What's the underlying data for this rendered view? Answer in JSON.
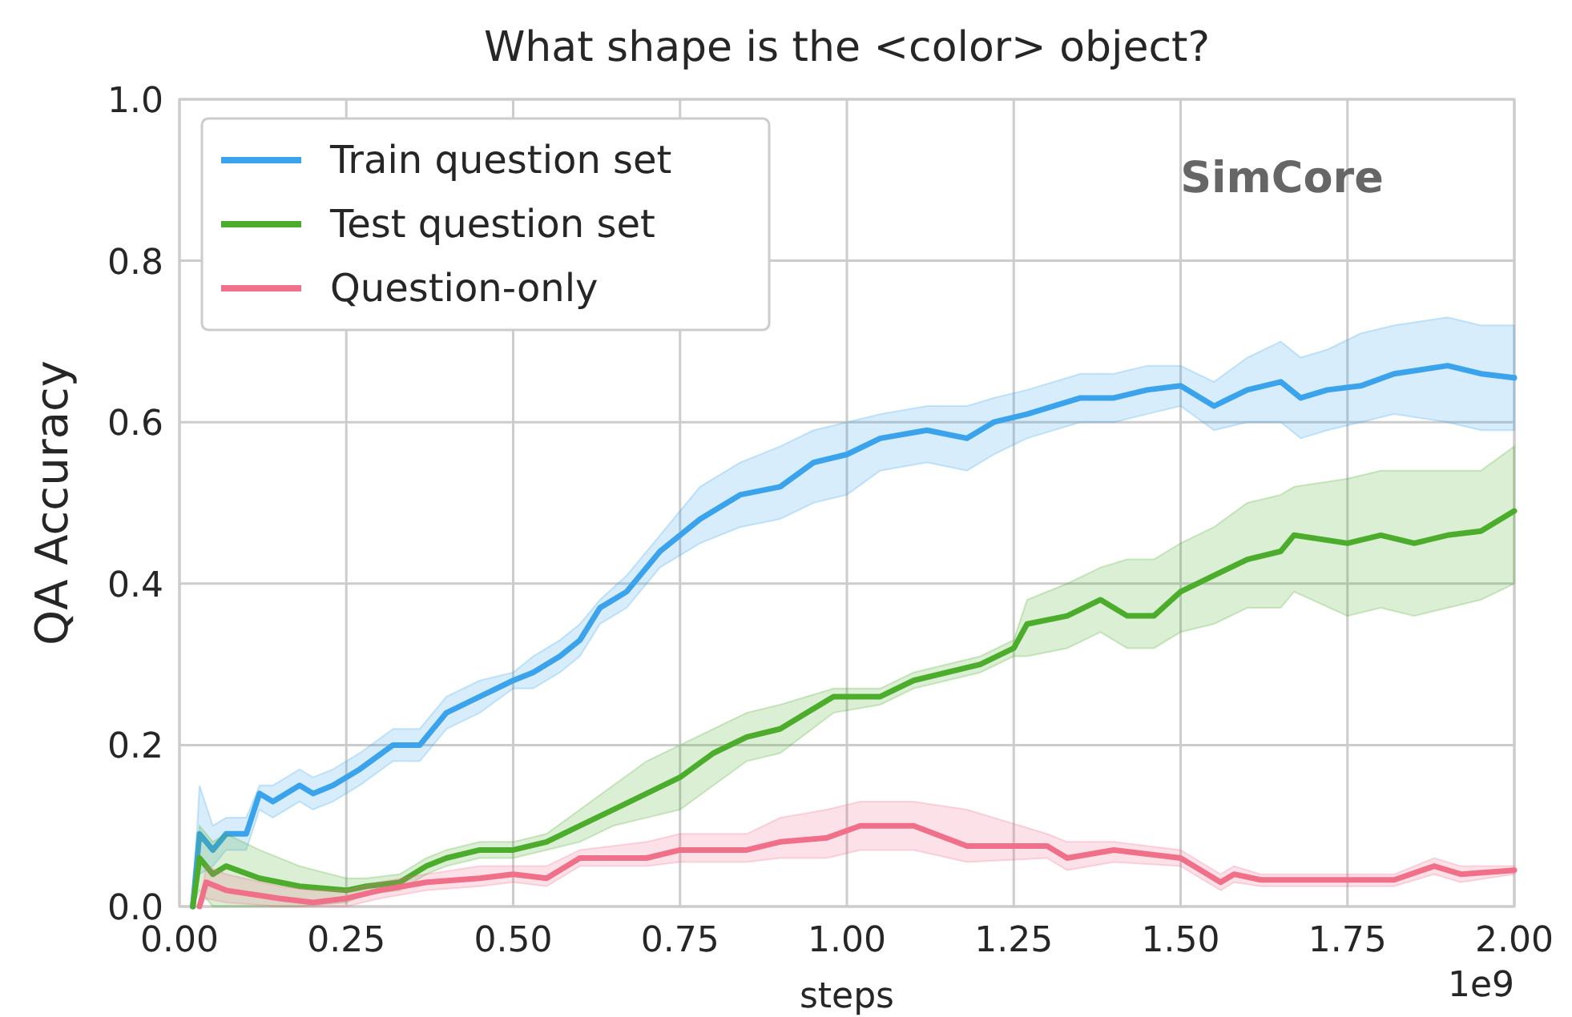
{
  "chart_data": {
    "type": "line",
    "title": "What shape is the <color> object?",
    "xlabel": "steps",
    "ylabel": "QA Accuracy",
    "annotations": [
      "SimCore",
      "1e9"
    ],
    "xlim": [
      0,
      2
    ],
    "xticks": [
      {
        "value": 0,
        "label": "0.00"
      },
      {
        "value": 0.25,
        "label": "0.25"
      },
      {
        "value": 0.5,
        "label": "0.50"
      },
      {
        "value": 0.75,
        "label": "0.75"
      },
      {
        "value": 1,
        "label": "1.00"
      },
      {
        "value": 1.25,
        "label": "1.25"
      },
      {
        "value": 1.5,
        "label": "1.50"
      },
      {
        "value": 1.75,
        "label": "1.75"
      },
      {
        "value": 2,
        "label": "2.00"
      }
    ],
    "ylim": [
      0,
      1
    ],
    "yticks": [
      {
        "value": 0,
        "label": "0.0"
      },
      {
        "value": 0.2,
        "label": "0.2"
      },
      {
        "value": 0.4,
        "label": "0.4"
      },
      {
        "value": 0.6,
        "label": "0.6"
      },
      {
        "value": 0.8,
        "label": "0.8"
      },
      {
        "value": 1,
        "label": "1.0"
      }
    ],
    "grid": true,
    "legend": "top left",
    "marker": "none",
    "line_style": "solid",
    "series": [
      {
        "name": "Train question set",
        "color": "#3ba3ec",
        "x": [
          0.02,
          0.03,
          0.05,
          0.07,
          0.1,
          0.12,
          0.14,
          0.18,
          0.2,
          0.23,
          0.27,
          0.32,
          0.36,
          0.4,
          0.45,
          0.5,
          0.53,
          0.57,
          0.6,
          0.63,
          0.67,
          0.72,
          0.78,
          0.84,
          0.9,
          0.95,
          1.0,
          1.05,
          1.12,
          1.18,
          1.22,
          1.27,
          1.35,
          1.4,
          1.45,
          1.5,
          1.55,
          1.6,
          1.65,
          1.68,
          1.72,
          1.77,
          1.82,
          1.9,
          1.95,
          2.0
        ],
        "values": [
          0,
          0.09,
          0.07,
          0.09,
          0.09,
          0.14,
          0.13,
          0.15,
          0.14,
          0.15,
          0.17,
          0.2,
          0.2,
          0.24,
          0.26,
          0.28,
          0.29,
          0.31,
          0.33,
          0.37,
          0.39,
          0.44,
          0.48,
          0.51,
          0.52,
          0.55,
          0.56,
          0.58,
          0.59,
          0.58,
          0.6,
          0.61,
          0.63,
          0.63,
          0.64,
          0.645,
          0.62,
          0.64,
          0.65,
          0.63,
          0.64,
          0.645,
          0.66,
          0.67,
          0.66,
          0.655
        ],
        "upper": [
          0,
          0.15,
          0.1,
          0.11,
          0.11,
          0.15,
          0.15,
          0.17,
          0.16,
          0.17,
          0.19,
          0.22,
          0.22,
          0.26,
          0.28,
          0.29,
          0.31,
          0.33,
          0.35,
          0.38,
          0.41,
          0.46,
          0.52,
          0.55,
          0.57,
          0.59,
          0.6,
          0.61,
          0.62,
          0.62,
          0.63,
          0.64,
          0.66,
          0.66,
          0.67,
          0.67,
          0.65,
          0.68,
          0.7,
          0.68,
          0.69,
          0.71,
          0.72,
          0.73,
          0.72,
          0.72
        ],
        "lower": [
          0,
          0.04,
          0.05,
          0.07,
          0.07,
          0.12,
          0.11,
          0.13,
          0.12,
          0.13,
          0.15,
          0.18,
          0.18,
          0.22,
          0.24,
          0.27,
          0.27,
          0.29,
          0.31,
          0.35,
          0.37,
          0.42,
          0.45,
          0.47,
          0.48,
          0.5,
          0.51,
          0.54,
          0.55,
          0.54,
          0.56,
          0.58,
          0.6,
          0.6,
          0.61,
          0.62,
          0.59,
          0.6,
          0.6,
          0.58,
          0.59,
          0.6,
          0.61,
          0.6,
          0.59,
          0.59
        ]
      },
      {
        "name": "Test question set",
        "color": "#4cad2c",
        "x": [
          0.02,
          0.03,
          0.05,
          0.07,
          0.12,
          0.18,
          0.25,
          0.28,
          0.33,
          0.37,
          0.4,
          0.45,
          0.5,
          0.55,
          0.6,
          0.65,
          0.7,
          0.75,
          0.8,
          0.85,
          0.9,
          0.98,
          1.05,
          1.1,
          1.2,
          1.25,
          1.27,
          1.33,
          1.38,
          1.42,
          1.46,
          1.5,
          1.55,
          1.6,
          1.65,
          1.67,
          1.75,
          1.8,
          1.85,
          1.9,
          1.95,
          2.0
        ],
        "values": [
          0,
          0.06,
          0.04,
          0.05,
          0.035,
          0.025,
          0.02,
          0.025,
          0.03,
          0.05,
          0.06,
          0.07,
          0.07,
          0.08,
          0.1,
          0.12,
          0.14,
          0.16,
          0.19,
          0.21,
          0.22,
          0.26,
          0.26,
          0.28,
          0.3,
          0.32,
          0.35,
          0.36,
          0.38,
          0.36,
          0.36,
          0.39,
          0.41,
          0.43,
          0.44,
          0.46,
          0.45,
          0.46,
          0.45,
          0.46,
          0.465,
          0.49
        ],
        "upper": [
          0,
          0.1,
          0.08,
          0.09,
          0.07,
          0.05,
          0.035,
          0.035,
          0.04,
          0.06,
          0.07,
          0.08,
          0.08,
          0.09,
          0.12,
          0.15,
          0.18,
          0.2,
          0.22,
          0.24,
          0.25,
          0.27,
          0.27,
          0.29,
          0.31,
          0.33,
          0.38,
          0.4,
          0.42,
          0.43,
          0.43,
          0.45,
          0.47,
          0.5,
          0.51,
          0.52,
          0.53,
          0.54,
          0.54,
          0.54,
          0.54,
          0.57
        ],
        "lower": [
          0,
          0.02,
          0,
          0,
          0,
          0,
          0.005,
          0.015,
          0.02,
          0.04,
          0.05,
          0.06,
          0.06,
          0.07,
          0.08,
          0.1,
          0.11,
          0.12,
          0.15,
          0.18,
          0.19,
          0.24,
          0.25,
          0.27,
          0.29,
          0.31,
          0.31,
          0.32,
          0.34,
          0.32,
          0.32,
          0.34,
          0.35,
          0.37,
          0.37,
          0.39,
          0.36,
          0.37,
          0.36,
          0.37,
          0.38,
          0.4
        ]
      },
      {
        "name": "Question-only",
        "color": "#f0708a",
        "x": [
          0.03,
          0.04,
          0.07,
          0.15,
          0.2,
          0.25,
          0.3,
          0.37,
          0.45,
          0.5,
          0.55,
          0.6,
          0.7,
          0.75,
          0.85,
          0.9,
          0.97,
          1.02,
          1.1,
          1.18,
          1.3,
          1.33,
          1.4,
          1.5,
          1.56,
          1.58,
          1.62,
          1.82,
          1.88,
          1.92,
          2.0
        ],
        "values": [
          0,
          0.03,
          0.02,
          0.01,
          0.005,
          0.01,
          0.02,
          0.03,
          0.035,
          0.04,
          0.035,
          0.06,
          0.06,
          0.07,
          0.07,
          0.08,
          0.085,
          0.1,
          0.1,
          0.075,
          0.075,
          0.06,
          0.07,
          0.06,
          0.03,
          0.04,
          0.033,
          0.033,
          0.05,
          0.04,
          0.045
        ],
        "upper": [
          0,
          0.05,
          0.04,
          0.025,
          0.02,
          0.02,
          0.03,
          0.04,
          0.05,
          0.05,
          0.05,
          0.07,
          0.08,
          0.09,
          0.09,
          0.11,
          0.12,
          0.13,
          0.13,
          0.12,
          0.09,
          0.08,
          0.08,
          0.07,
          0.04,
          0.05,
          0.04,
          0.04,
          0.06,
          0.05,
          0.05
        ],
        "lower": [
          0,
          0.01,
          0.005,
          0,
          0,
          0,
          0.01,
          0.02,
          0.025,
          0.03,
          0.025,
          0.05,
          0.05,
          0.055,
          0.055,
          0.06,
          0.06,
          0.07,
          0.07,
          0.055,
          0.06,
          0.045,
          0.055,
          0.05,
          0.02,
          0.03,
          0.025,
          0.025,
          0.04,
          0.03,
          0.04
        ]
      }
    ]
  }
}
